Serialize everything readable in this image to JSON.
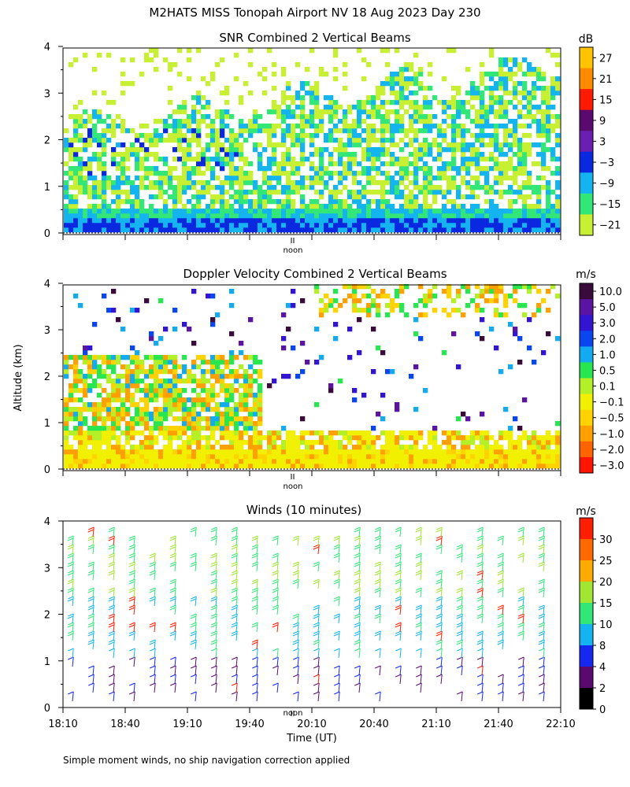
{
  "figure": {
    "title": "M2HATS MISS Tonopah Airport NV  18 Aug 2023 Day 230",
    "ylabel": "Altitude (km)",
    "xlabel": "Time (UT)",
    "footnote": "Simple moment winds, no ship navigation correction applied",
    "noon_label": "noon"
  },
  "chart_data": [
    {
      "type": "heatmap",
      "title": "SNR Combined 2 Vertical Beams",
      "ylim": [
        0,
        4
      ],
      "yticks": [
        "0",
        "1",
        "2",
        "3",
        "4"
      ],
      "colorbar": {
        "unit": "dB",
        "labels": [
          "27",
          "21",
          "15",
          "9",
          "3",
          "−3",
          "−9",
          "−15",
          "−21"
        ],
        "colors": [
          "#ffc400",
          "#ff8a00",
          "#ff1a00",
          "#5a0a6e",
          "#6a1fb0",
          "#0a28e0",
          "#14b4f0",
          "#32e678",
          "#c8f032"
        ]
      }
    },
    {
      "type": "heatmap",
      "title": "Doppler Velocity Combined 2 Vertical Beams",
      "ylim": [
        0,
        4
      ],
      "yticks": [
        "0",
        "1",
        "2",
        "3",
        "4"
      ],
      "colorbar": {
        "unit": "m/s",
        "labels": [
          "10.0",
          "5.0",
          "3.0",
          "2.0",
          "1.0",
          "0.5",
          "0.1",
          "−0.1",
          "−0.5",
          "−1.0",
          "−2.0",
          "−3.0"
        ],
        "colors": [
          "#3a0a3a",
          "#5a14a0",
          "#3214d2",
          "#0a46f0",
          "#14aaf0",
          "#28e650",
          "#b4f028",
          "#f0f000",
          "#ffd200",
          "#ffa000",
          "#ff6400",
          "#ff1400"
        ]
      }
    },
    {
      "type": "scatter",
      "title": "Winds (10 minutes)",
      "ylim": [
        0,
        4
      ],
      "yticks": [
        "0",
        "1",
        "2",
        "3",
        "4"
      ],
      "xticks": [
        "18:10",
        "18:40",
        "19:10",
        "19:40",
        "20:10",
        "20:40",
        "21:10",
        "21:40",
        "22:10"
      ],
      "colorbar": {
        "unit": "m/s",
        "labels": [
          "30",
          "25",
          "20",
          "15",
          "10",
          "8",
          "4",
          "2",
          "0"
        ],
        "colors": [
          "#ff1e00",
          "#ff6a00",
          "#ffaa00",
          "#a0e632",
          "#32e678",
          "#14b4f0",
          "#1428f0",
          "#5a0a6e",
          "#000000"
        ]
      }
    }
  ]
}
